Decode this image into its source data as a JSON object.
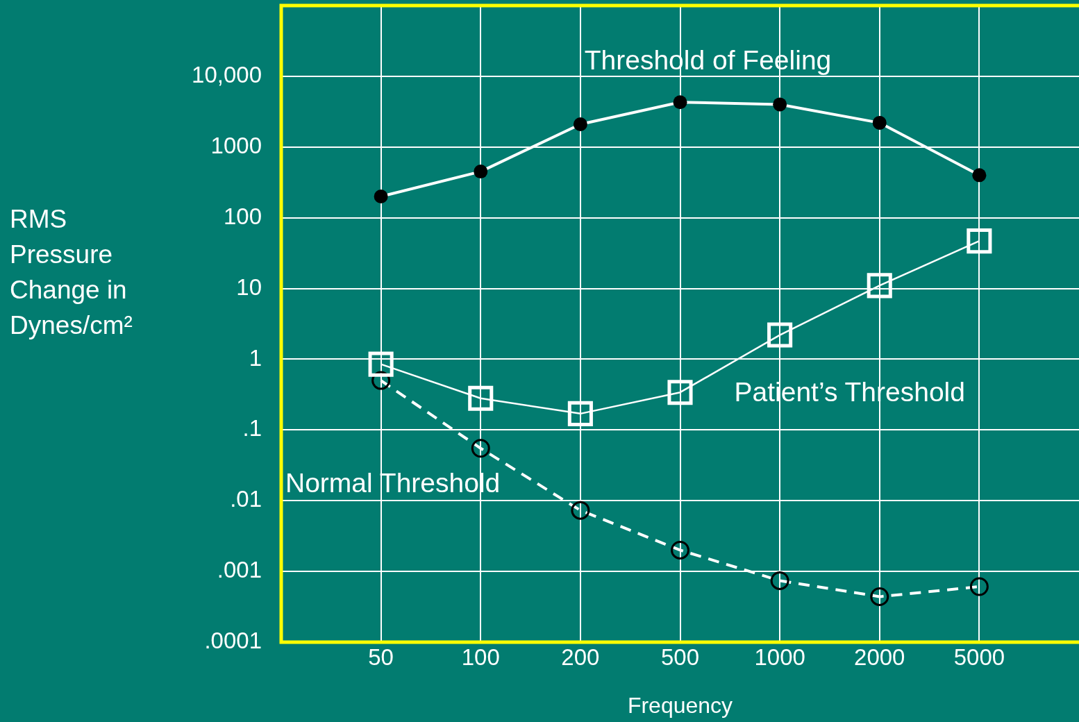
{
  "chart_data": {
    "type": "line",
    "categories": [
      "50",
      "100",
      "200",
      "500",
      "1000",
      "2000",
      "5000"
    ],
    "series": [
      {
        "name": "Threshold of Feeling",
        "color": "#ffffff",
        "colors": [
          "#000000",
          "#000000",
          "#000000",
          "#000000",
          "#000000",
          "#000000",
          "#000000"
        ],
        "marker": "circle",
        "line_style": "solid",
        "values": [
          200,
          450,
          2100,
          4300,
          4000,
          2200,
          400
        ]
      },
      {
        "name": "Patient’s Threshold",
        "color": "#ffffff",
        "colors": [
          "#ffffff",
          "#ffffff",
          "#ffffff",
          "#ffffff",
          "#ffffff",
          "#ffffff",
          "#ffffff"
        ],
        "marker": "square",
        "line_style": "solid",
        "values": [
          0.85,
          0.28,
          0.17,
          0.34,
          2.2,
          11,
          47
        ]
      },
      {
        "name": "Normal Threshold",
        "color": "#ffffff",
        "colors": [
          "#000000",
          "#000000",
          "#000000",
          "#000000",
          "#000000",
          "#000000",
          "#000000"
        ],
        "marker": "circle",
        "line_style": "dashed",
        "values": [
          0.5,
          0.055,
          0.0073,
          0.002,
          0.00074,
          0.00044,
          0.00061
        ]
      }
    ],
    "xlabel": "Frequency",
    "ylabel": "RMS Pressure Change in Dynes/cm²",
    "log": true,
    "ylim": [
      0.0001,
      100000
    ],
    "yticks": [
      {
        "value": 0.0001,
        "label": ".0001"
      },
      {
        "value": 0.001,
        "label": ".001"
      },
      {
        "value": 0.01,
        "label": ".01"
      },
      {
        "value": 0.1,
        "label": ".1"
      },
      1,
      10,
      100,
      1000,
      {
        "value": 10000,
        "label": "10,000"
      }
    ],
    "grid": true,
    "legend": false
  }
}
